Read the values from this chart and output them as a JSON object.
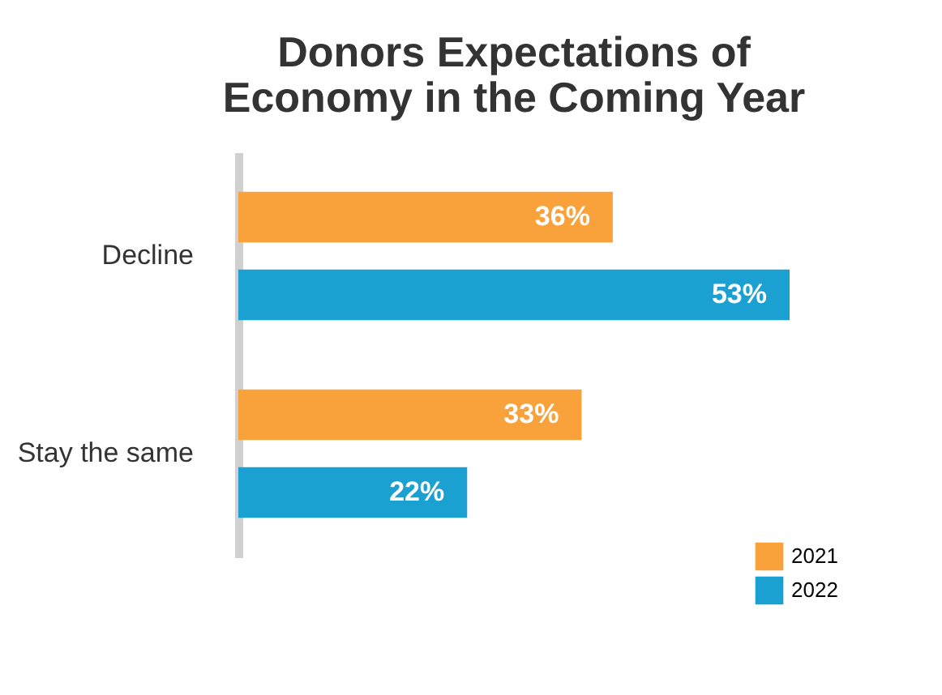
{
  "chart_data": {
    "type": "bar",
    "orientation": "horizontal",
    "title": [
      "Donors Expectations of",
      "Economy in the Coming Year"
    ],
    "categories": [
      "Decline",
      "Stay the same"
    ],
    "series": [
      {
        "name": "2021",
        "color": "#f9a23c",
        "values": [
          36,
          33
        ],
        "value_labels": [
          "36%",
          "33%"
        ]
      },
      {
        "name": "2022",
        "color": "#1ba0d2",
        "values": [
          53,
          22
        ],
        "value_labels": [
          "53%",
          "22%"
        ]
      }
    ],
    "tick_labels": "y",
    "grid": false,
    "legend": "bottom right"
  }
}
